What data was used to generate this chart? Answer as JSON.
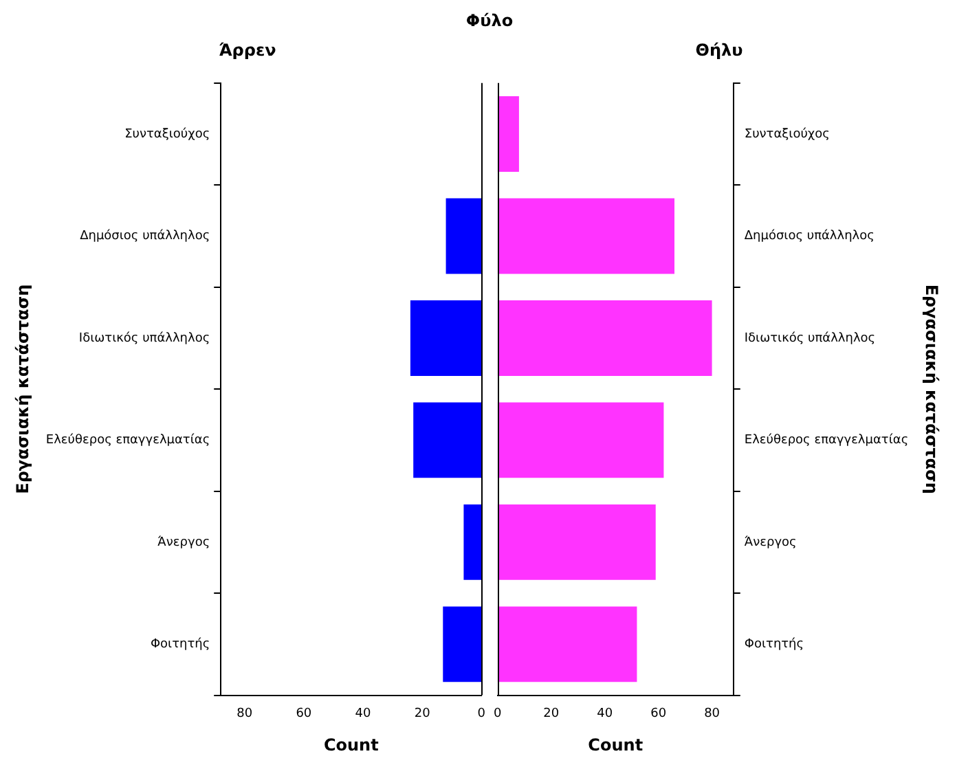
{
  "chart_data": [
    {
      "type": "bar",
      "orientation": "horizontal",
      "title": "Άρρεν",
      "xlabel": "Count",
      "ylabel": "Εργασιακή κατάσταση",
      "annotations": [
        "Φύλο"
      ],
      "categories": [
        "Συνταξιούχος",
        "Δημόσιος υπάλληλος",
        "Ιδιωτικός υπάλληλος",
        "Ελεύθερος επαγγελματίας",
        "Άνεργος",
        "Φοιτητής"
      ],
      "values": [
        0,
        12,
        24,
        23,
        6,
        13
      ],
      "color": "#0000ff",
      "xlim": [
        88,
        0
      ],
      "xticks": [
        80,
        60,
        40,
        20,
        0
      ],
      "grid": false
    },
    {
      "type": "bar",
      "orientation": "horizontal",
      "title": "Θήλυ",
      "xlabel": "Count",
      "ylabel": "Εργασιακή κατάσταση",
      "categories": [
        "Συνταξιούχος",
        "Δημόσιος υπάλληλος",
        "Ιδιωτικός υπάλληλος",
        "Ελεύθερος επαγγελματίας",
        "Άνεργος",
        "Φοιτητής"
      ],
      "values": [
        8,
        66,
        80,
        62,
        59,
        52
      ],
      "color": "#ff33ff",
      "xlim": [
        0,
        88
      ],
      "xticks": [
        0,
        20,
        40,
        60,
        80
      ],
      "grid": false
    }
  ]
}
